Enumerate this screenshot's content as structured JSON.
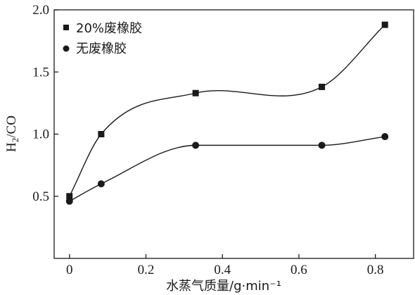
{
  "chart_data": {
    "type": "scatter",
    "title": "",
    "xlabel": "水蒸气质量/g·min⁻¹",
    "ylabel_main": "H",
    "ylabel_sub": "2",
    "ylabel_tail": "/CO",
    "xlim": [
      -0.04,
      0.9
    ],
    "ylim": [
      0.0,
      2.0
    ],
    "xticks": [
      0,
      0.2,
      0.4,
      0.6,
      0.8
    ],
    "xtick_labels": [
      "0",
      "0.2",
      "0.4",
      "0.6",
      "0.8"
    ],
    "yticks": [
      0.5,
      1.0,
      1.5,
      2.0
    ],
    "ytick_labels": [
      "0.5",
      "1.0",
      "1.5",
      "2.0"
    ],
    "legend_position": "top-left",
    "series": [
      {
        "name": "20%废橡胶",
        "marker": "square",
        "x": [
          0,
          0.083,
          0.33,
          0.66,
          0.825
        ],
        "y": [
          0.5,
          1.0,
          1.33,
          1.38,
          1.88
        ]
      },
      {
        "name": "无废橡胶",
        "marker": "circle",
        "x": [
          0,
          0.083,
          0.33,
          0.66,
          0.825
        ],
        "y": [
          0.46,
          0.6,
          0.91,
          0.91,
          0.98
        ]
      }
    ]
  }
}
